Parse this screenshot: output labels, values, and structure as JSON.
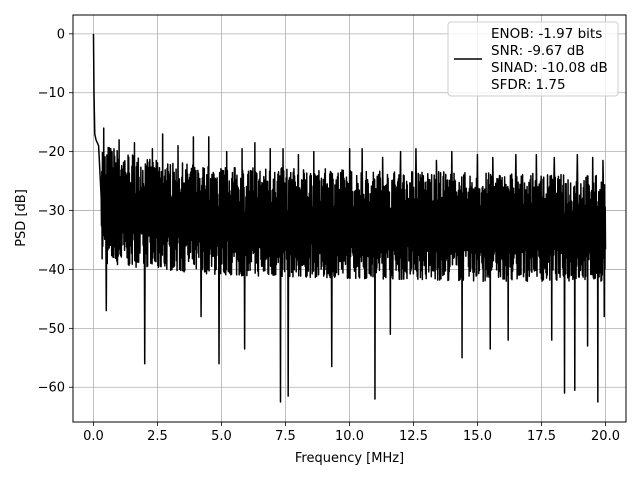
{
  "chart_data": {
    "type": "line",
    "xlabel": "Frequency [MHz]",
    "ylabel": "PSD [dB]",
    "xlim": [
      -0.8,
      20.8
    ],
    "ylim": [
      -65.9,
      3.2
    ],
    "xticks": [
      0.0,
      2.5,
      5.0,
      7.5,
      10.0,
      12.5,
      15.0,
      17.5,
      20.0
    ],
    "xtick_labels": [
      "0.0",
      "2.5",
      "5.0",
      "7.5",
      "10.0",
      "12.5",
      "15.0",
      "17.5",
      "20.0"
    ],
    "yticks": [
      0,
      -10,
      -20,
      -30,
      -40,
      -50,
      -60
    ],
    "ytick_labels": [
      "0",
      "−10",
      "−20",
      "−30",
      "−40",
      "−50",
      "−60"
    ],
    "grid": true,
    "legend_position": "top-right",
    "line_color": "#000000",
    "legend": [
      "ENOB: -1.97 bits",
      "SNR: -9.67 dB",
      "SINAD: -10.08 dB",
      "SFDR: 1.75"
    ],
    "series": [
      {
        "x_start": 0.0,
        "x_end": 20.0,
        "peak": [
          [
            0.0,
            0.0
          ],
          [
            0.02,
            -10.0
          ],
          [
            0.05,
            -17.0
          ],
          [
            0.1,
            -18.0
          ],
          [
            0.2,
            -19.0
          ]
        ],
        "upper_envelope": [
          [
            0.3,
            -18.5
          ],
          [
            2.5,
            -21.5
          ],
          [
            5.0,
            -22.5
          ],
          [
            10.0,
            -23.0
          ],
          [
            15.0,
            -23.5
          ],
          [
            20.0,
            -24.0
          ]
        ],
        "lower_envelope": [
          [
            0.3,
            -39.0
          ],
          [
            2.5,
            -40.0
          ],
          [
            5.0,
            -41.0
          ],
          [
            10.0,
            -41.5
          ],
          [
            15.0,
            -42.0
          ],
          [
            20.0,
            -42.0
          ]
        ],
        "deep_dips": [
          [
            0.5,
            -47.0
          ],
          [
            2.0,
            -56.0
          ],
          [
            3.9,
            -51.0
          ],
          [
            4.2,
            -48.0
          ],
          [
            4.9,
            -56.0
          ],
          [
            5.9,
            -53.5
          ],
          [
            6.3,
            -59.0
          ],
          [
            7.3,
            -62.5
          ],
          [
            7.6,
            -61.5
          ],
          [
            8.6,
            -49.5
          ],
          [
            9.3,
            -56.5
          ],
          [
            10.5,
            -58.0
          ],
          [
            11.0,
            -62.0
          ],
          [
            11.6,
            -51.0
          ],
          [
            14.4,
            -55.0
          ],
          [
            15.5,
            -53.5
          ],
          [
            16.2,
            -52.0
          ],
          [
            17.9,
            -52.0
          ],
          [
            18.4,
            -61.0
          ],
          [
            18.8,
            -60.5
          ],
          [
            19.3,
            -53.0
          ],
          [
            19.7,
            -62.5
          ],
          [
            19.95,
            -48.0
          ]
        ],
        "spikes": [
          [
            0.4,
            -16.0
          ],
          [
            1.0,
            -18.0
          ],
          [
            1.6,
            -18.5
          ],
          [
            2.3,
            -19.5
          ],
          [
            2.7,
            -17.0
          ],
          [
            3.3,
            -19.0
          ],
          [
            3.9,
            -17.5
          ],
          [
            4.5,
            -17.5
          ],
          [
            5.2,
            -20.0
          ],
          [
            5.8,
            -19.5
          ],
          [
            6.3,
            -18.5
          ],
          [
            6.9,
            -19.5
          ],
          [
            7.4,
            -19.5
          ],
          [
            8.0,
            -20.5
          ],
          [
            8.6,
            -20.0
          ],
          [
            10.0,
            -19.5
          ],
          [
            10.5,
            -19.5
          ],
          [
            11.3,
            -21.0
          ],
          [
            12.0,
            -20.0
          ],
          [
            12.6,
            -19.5
          ],
          [
            13.4,
            -21.5
          ],
          [
            14.0,
            -20.0
          ],
          [
            15.0,
            -20.5
          ],
          [
            15.6,
            -21.0
          ],
          [
            16.5,
            -20.5
          ],
          [
            17.3,
            -20.5
          ],
          [
            18.0,
            -21.0
          ],
          [
            18.9,
            -20.5
          ],
          [
            19.5,
            -21.0
          ],
          [
            19.9,
            -21.5
          ]
        ],
        "point_count": 1600
      }
    ]
  }
}
